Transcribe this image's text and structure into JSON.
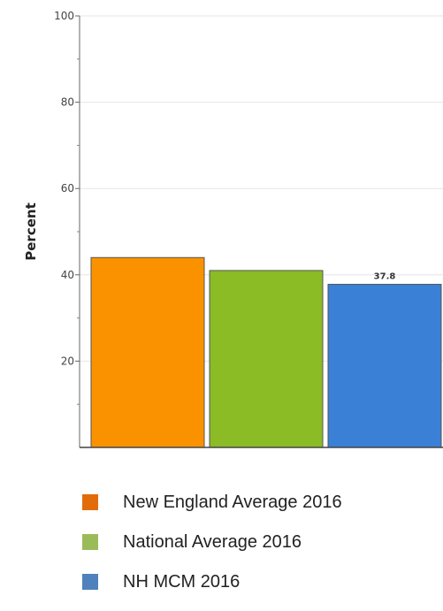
{
  "chart_data": {
    "type": "bar",
    "title": "",
    "xlabel": "",
    "ylabel": "Percent",
    "ylim": [
      0,
      100
    ],
    "yticks": [
      20,
      40,
      60,
      80,
      100
    ],
    "grid": true,
    "legend_position": "bottom",
    "series": [
      {
        "name": "New England Average 2016",
        "value": 44,
        "color": "#fa9200",
        "legend_color": "#e36c0a"
      },
      {
        "name": "National Average 2016",
        "value": 41,
        "color": "#8bbb25",
        "legend_color": "#9bbb59"
      },
      {
        "name": "NH MCM 2016",
        "value": 37.8,
        "color": "#3a80d6",
        "legend_color": "#4f81bd"
      }
    ],
    "data_labels": [
      {
        "series_index": 2,
        "text": "37.8"
      }
    ]
  }
}
